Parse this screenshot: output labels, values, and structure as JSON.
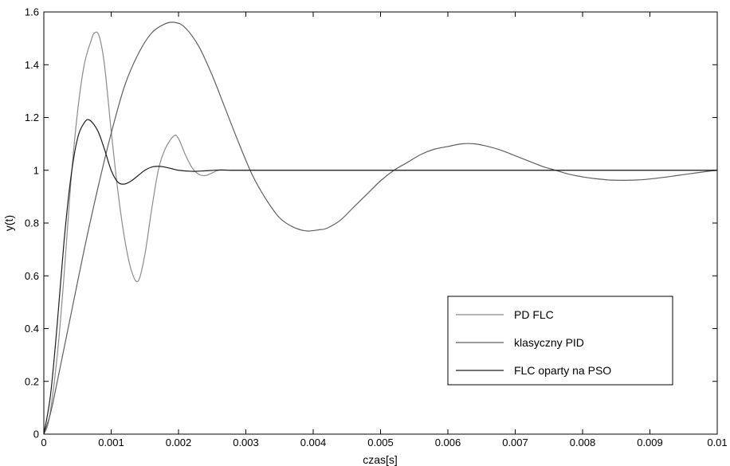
{
  "chart_data": {
    "type": "line",
    "title": "",
    "xlabel": "czas[s]",
    "ylabel": "y(t)",
    "xlim": [
      0,
      0.01
    ],
    "ylim": [
      0,
      1.6
    ],
    "x_ticks": [
      0,
      0.001,
      0.002,
      0.003,
      0.004,
      0.005,
      0.006,
      0.007,
      0.008,
      0.009,
      0.01
    ],
    "x_tick_labels": [
      "0",
      "0.001",
      "0.002",
      "0.003",
      "0.004",
      "0.005",
      "0.006",
      "0.007",
      "0.008",
      "0.009",
      "0.01"
    ],
    "y_ticks": [
      0,
      0.2,
      0.4,
      0.6,
      0.8,
      1,
      1.2,
      1.4,
      1.6
    ],
    "y_tick_labels": [
      "0",
      "0.2",
      "0.4",
      "0.6",
      "0.8",
      "1",
      "1.2",
      "1.4",
      "1.6"
    ],
    "grid": false,
    "legend_position": "lower-right",
    "series": [
      {
        "name": "PD FLC",
        "color": "#8c8c8c",
        "x": [
          0,
          8e-05,
          0.0002,
          0.0003,
          0.0004,
          0.0005,
          0.0006,
          0.0007,
          0.00075,
          0.00082,
          0.0009,
          0.001,
          0.0011,
          0.0012,
          0.0013,
          0.0014,
          0.0015,
          0.0016,
          0.0017,
          0.0018,
          0.00193,
          0.002,
          0.0021,
          0.0022,
          0.0023,
          0.0024,
          0.0025,
          0.0026,
          0.0028,
          0.003,
          0.004,
          0.005,
          0.006,
          0.007,
          0.008,
          0.009,
          0.01
        ],
        "y": [
          0,
          0.06,
          0.3,
          0.6,
          0.95,
          1.22,
          1.4,
          1.49,
          1.52,
          1.51,
          1.4,
          1.15,
          0.92,
          0.74,
          0.62,
          0.58,
          0.68,
          0.85,
          1.0,
          1.08,
          1.13,
          1.12,
          1.06,
          1.01,
          0.985,
          0.98,
          0.99,
          1.0,
          1.0,
          1.0,
          1.0,
          1.0,
          1.0,
          1.0,
          1.0,
          1.0,
          1.0
        ]
      },
      {
        "name": "klasyczny PID",
        "color": "#5f5f5f",
        "x": [
          0,
          0.0001,
          0.0002,
          0.0004,
          0.0006,
          0.0008,
          0.001,
          0.0012,
          0.0014,
          0.0016,
          0.0018,
          0.00195,
          0.0021,
          0.0023,
          0.0025,
          0.0027,
          0.0029,
          0.0031,
          0.0033,
          0.0035,
          0.0037,
          0.0039,
          0.0041,
          0.0042,
          0.0044,
          0.0046,
          0.0048,
          0.005,
          0.0052,
          0.0054,
          0.0056,
          0.0058,
          0.006,
          0.0062,
          0.0064,
          0.0066,
          0.0068,
          0.007,
          0.0072,
          0.0074,
          0.0076,
          0.0078,
          0.008,
          0.0082,
          0.0084,
          0.0086,
          0.0088,
          0.009,
          0.0092,
          0.0094,
          0.0096,
          0.0098,
          0.01
        ],
        "y": [
          0,
          0.08,
          0.2,
          0.45,
          0.7,
          0.93,
          1.14,
          1.32,
          1.44,
          1.52,
          1.555,
          1.56,
          1.54,
          1.47,
          1.36,
          1.23,
          1.1,
          0.98,
          0.89,
          0.82,
          0.785,
          0.77,
          0.775,
          0.78,
          0.81,
          0.86,
          0.91,
          0.96,
          1.0,
          1.03,
          1.06,
          1.08,
          1.09,
          1.1,
          1.1,
          1.09,
          1.075,
          1.055,
          1.035,
          1.015,
          1.0,
          0.985,
          0.975,
          0.968,
          0.963,
          0.962,
          0.963,
          0.967,
          0.973,
          0.98,
          0.987,
          0.994,
          1.0
        ]
      },
      {
        "name": "FLC oparty na PSO",
        "color": "#1e1e1e",
        "x": [
          0,
          0.0001,
          0.0002,
          0.0003,
          0.0004,
          0.0005,
          0.0006,
          0.00068,
          0.0008,
          0.0009,
          0.001,
          0.0011,
          0.0012,
          0.0013,
          0.0014,
          0.0015,
          0.0016,
          0.0017,
          0.0018,
          0.0019,
          0.002,
          0.0022,
          0.0024,
          0.0026,
          0.0028,
          0.003,
          0.004,
          0.005,
          0.006,
          0.007,
          0.008,
          0.009,
          0.01
        ],
        "y": [
          0,
          0.15,
          0.42,
          0.73,
          0.97,
          1.12,
          1.18,
          1.19,
          1.15,
          1.08,
          1.0,
          0.955,
          0.948,
          0.96,
          0.98,
          1.0,
          1.012,
          1.015,
          1.012,
          1.006,
          1.0,
          0.996,
          0.998,
          1.001,
          1.0,
          1.0,
          1.0,
          1.0,
          1.0,
          1.0,
          1.0,
          1.0,
          1.0
        ]
      }
    ]
  }
}
